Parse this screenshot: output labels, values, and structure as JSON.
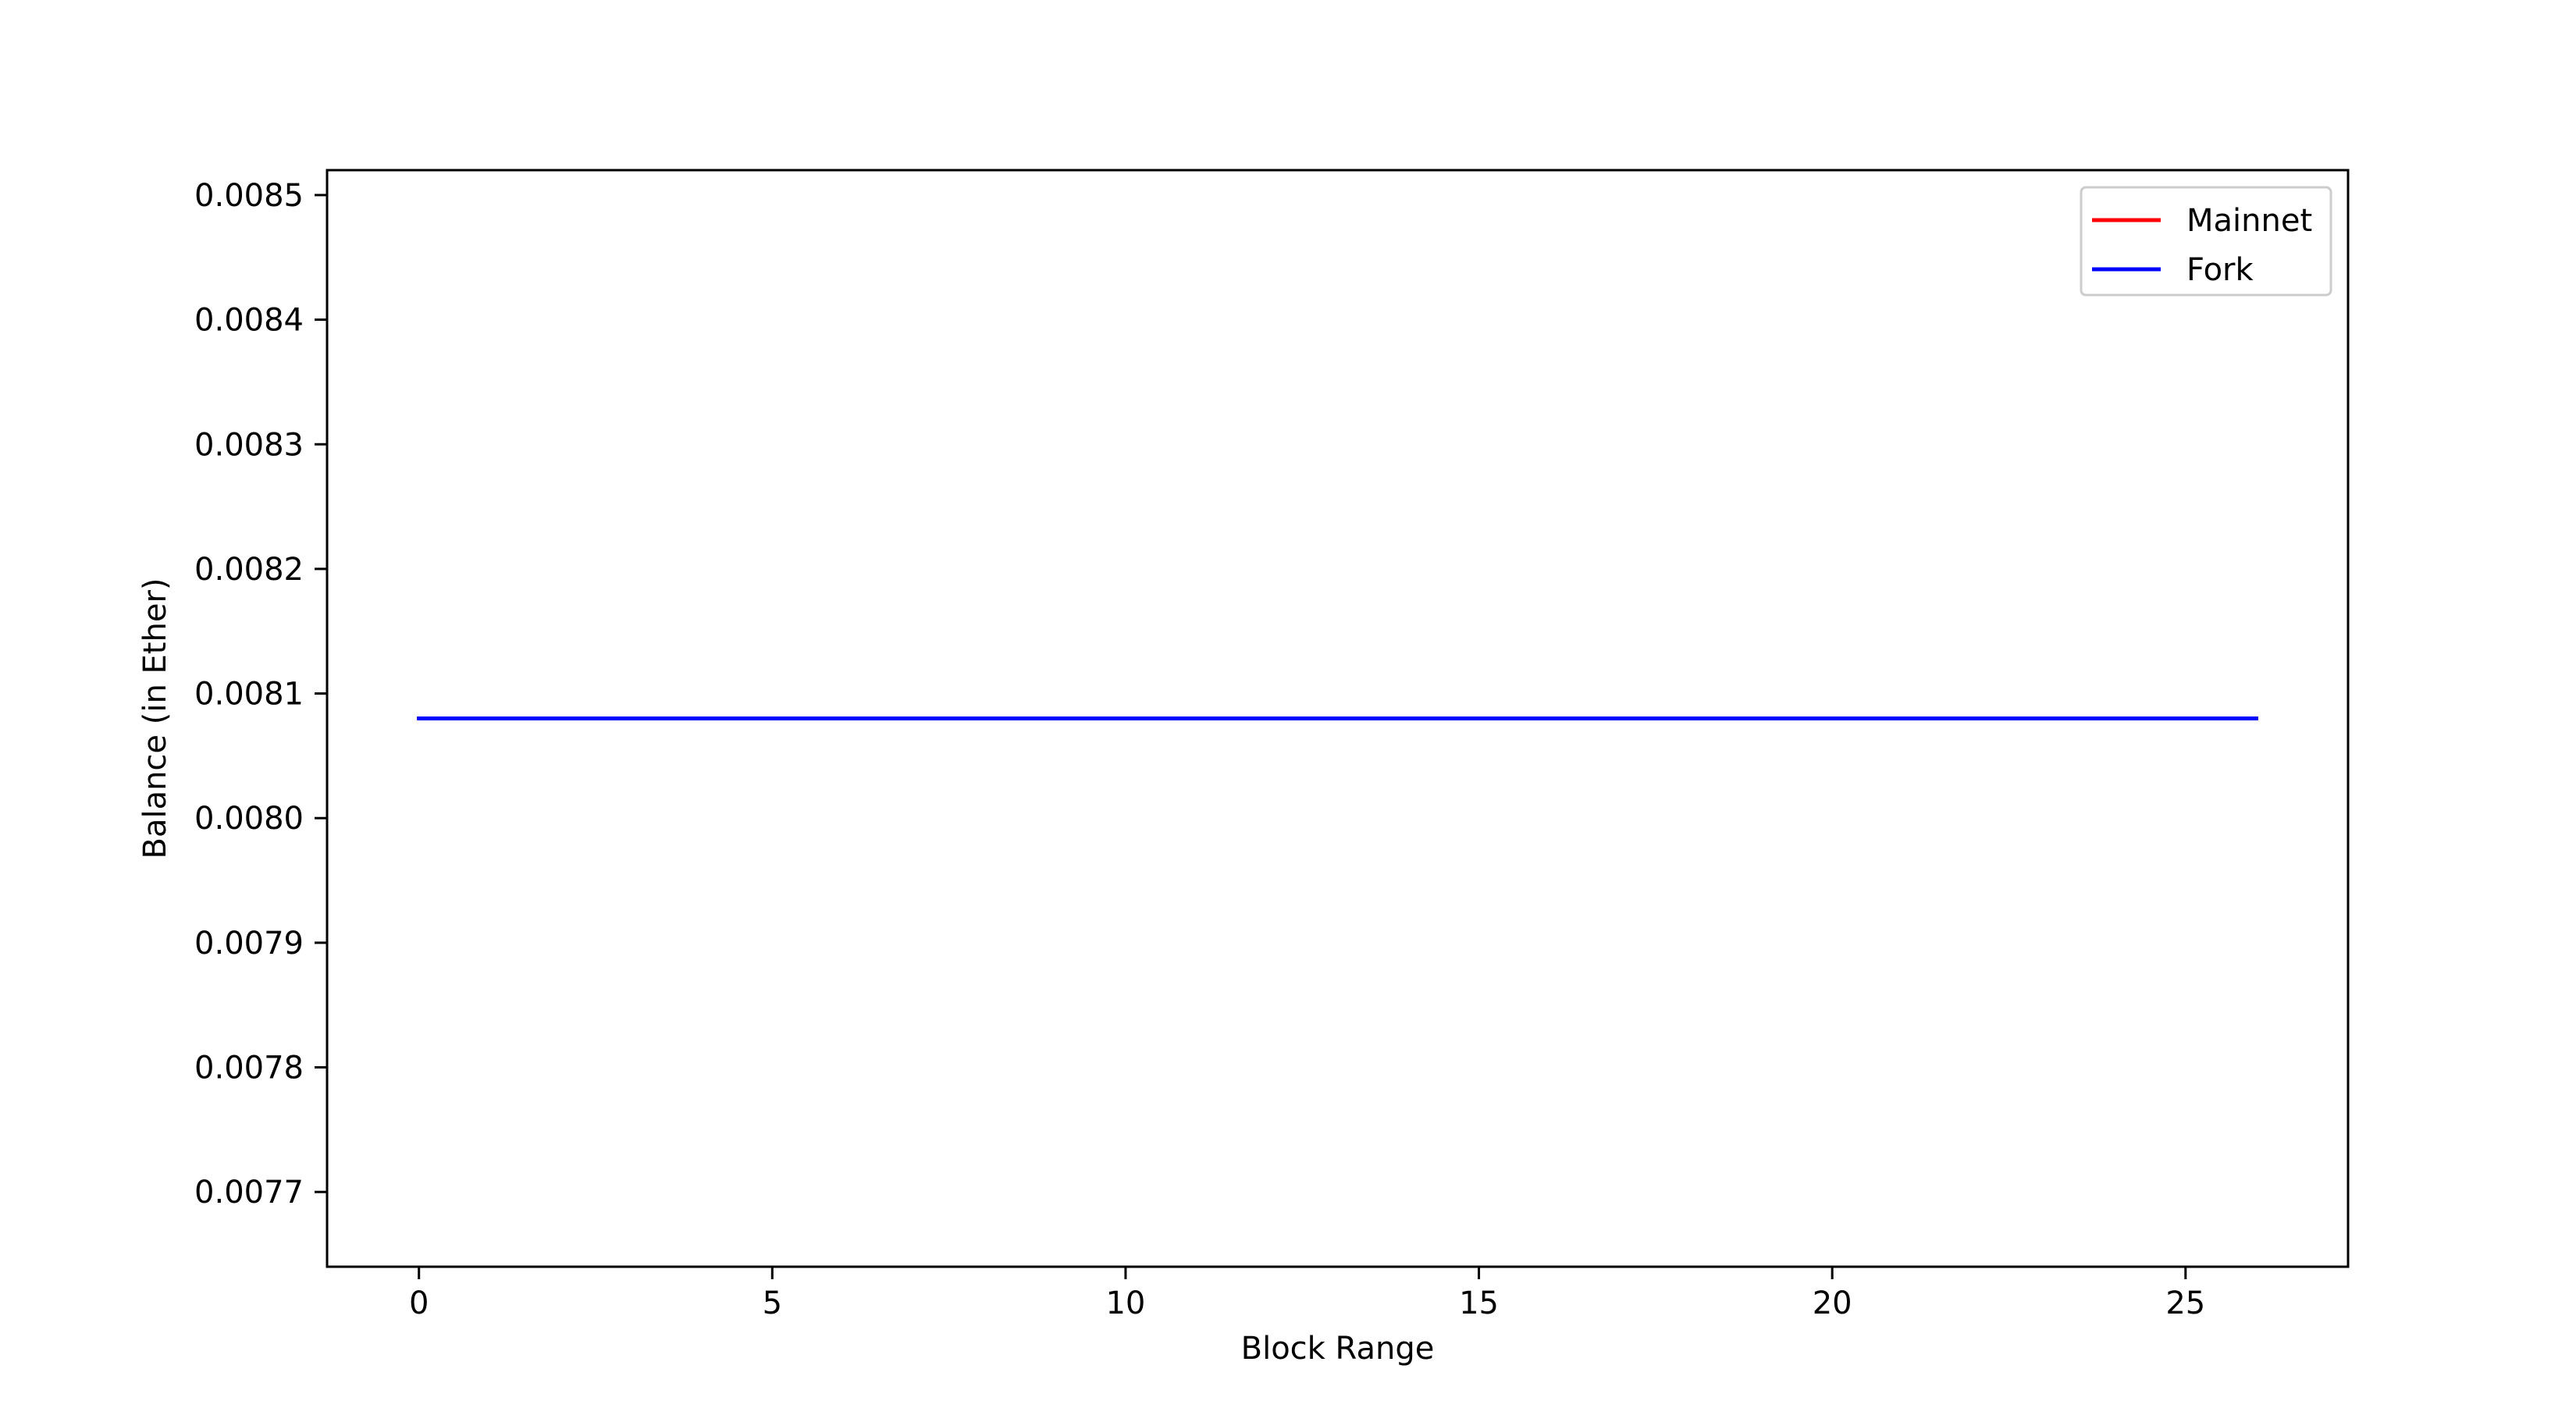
{
  "chart_data": {
    "type": "line",
    "xlabel": "Block Range",
    "ylabel": "Balance (in Ether)",
    "xlim": [
      -1.3,
      27.3
    ],
    "ylim": [
      0.00764,
      0.00852
    ],
    "xticks": [
      0,
      5,
      10,
      15,
      20,
      25
    ],
    "xtick_labels": [
      "0",
      "5",
      "10",
      "15",
      "20",
      "25"
    ],
    "yticks": [
      0.0077,
      0.0078,
      0.0079,
      0.008,
      0.0081,
      0.0082,
      0.0083,
      0.0084,
      0.0085
    ],
    "ytick_labels": [
      "0.0077",
      "0.0078",
      "0.0079",
      "0.0080",
      "0.0081",
      "0.0082",
      "0.0083",
      "0.0084",
      "0.0085"
    ],
    "grid": false,
    "legend_position": "top-right",
    "x": [
      0,
      1,
      2,
      3,
      4,
      5,
      6,
      7,
      8,
      9,
      10,
      11,
      12,
      13,
      14,
      15,
      16,
      17,
      18,
      19,
      20,
      21,
      22,
      23,
      24,
      25,
      26
    ],
    "series": [
      {
        "name": "Mainnet",
        "color": "#ff0000",
        "values": [
          0.00808,
          0.00808,
          0.00808,
          0.00808,
          0.00808,
          0.00808,
          0.00808,
          0.00808,
          0.00808,
          0.00808,
          0.00808,
          0.00808,
          0.00808,
          0.00808,
          0.00808,
          0.00808,
          0.00808,
          0.00808,
          0.00808,
          0.00808,
          0.00808,
          0.00808,
          0.00808,
          0.00808,
          0.00808,
          0.00808,
          0.00808
        ]
      },
      {
        "name": "Fork",
        "color": "#0000ff",
        "values": [
          0.00808,
          0.00808,
          0.00808,
          0.00808,
          0.00808,
          0.00808,
          0.00808,
          0.00808,
          0.00808,
          0.00808,
          0.00808,
          0.00808,
          0.00808,
          0.00808,
          0.00808,
          0.00808,
          0.00808,
          0.00808,
          0.00808,
          0.00808,
          0.00808,
          0.00808,
          0.00808,
          0.00808,
          0.00808,
          0.00808,
          0.00808
        ]
      }
    ]
  }
}
